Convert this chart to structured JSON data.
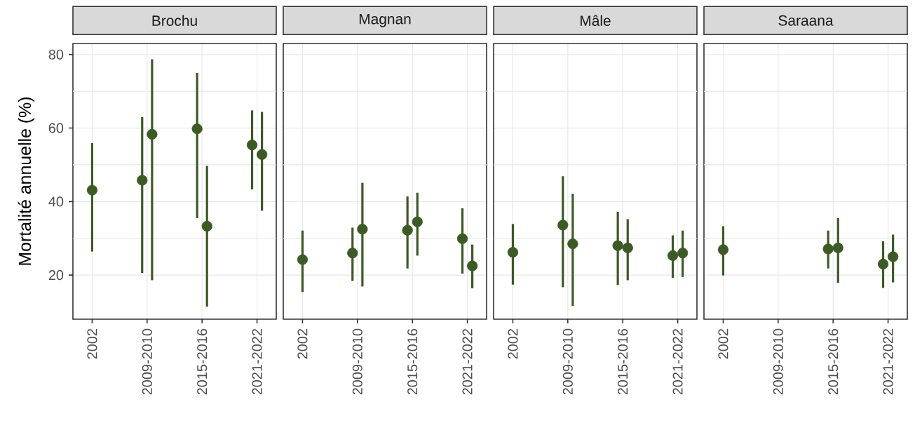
{
  "chart_data": [
    {
      "type": "scatter",
      "title": "Brochu",
      "ylabel": "Mortalité annuelle (%)",
      "categories": [
        "2002",
        "2009-2010",
        "2015-2016",
        "2021-2022"
      ],
      "series": [
        {
          "color": "#3b5a24",
          "values": [
            43.1,
            45.8,
            59.8,
            55.4
          ],
          "errors": [
            [
              26.4,
              55.9
            ],
            [
              20.6,
              63.0
            ],
            [
              35.5,
              75.0
            ],
            [
              43.3,
              64.8
            ]
          ]
        },
        {
          "color": "#3b5a24",
          "values": [
            null,
            58.3,
            33.3,
            52.8
          ],
          "errors": [
            null,
            [
              18.6,
              78.7
            ],
            [
              11.4,
              49.7
            ],
            [
              37.5,
              64.4
            ]
          ]
        }
      ],
      "ylim": [
        8,
        83
      ],
      "yticks": [
        20,
        {
          "value": 30,
          "label": null
        },
        40,
        {
          "value": 50,
          "label": null
        },
        60,
        {
          "value": 70,
          "label": null
        },
        80
      ],
      "grid": true
    },
    {
      "type": "scatter",
      "title": "Magnan",
      "categories": [
        "2002",
        "2009-2010",
        "2015-2016",
        "2021-2022"
      ],
      "series": [
        {
          "color": "#3b5a24",
          "values": [
            24.2,
            26.0,
            32.2,
            29.9
          ],
          "errors": [
            [
              15.4,
              32.1
            ],
            [
              18.4,
              32.9
            ],
            [
              21.8,
              41.4
            ],
            [
              20.4,
              38.2
            ]
          ]
        },
        {
          "color": "#3b5a24",
          "values": [
            null,
            32.5,
            34.5,
            22.5
          ],
          "errors": [
            null,
            [
              16.9,
              45.1
            ],
            [
              25.3,
              42.4
            ],
            [
              16.4,
              28.3
            ]
          ]
        }
      ],
      "ylim": [
        8,
        83
      ],
      "yticks": [
        20,
        {
          "value": 30,
          "label": null
        },
        40,
        {
          "value": 50,
          "label": null
        },
        60,
        {
          "value": 70,
          "label": null
        },
        80
      ],
      "grid": true,
      "tick_labels": "x"
    },
    {
      "type": "scatter",
      "title": "Mâle",
      "categories": [
        "2002",
        "2009-2010",
        "2015-2016",
        "2021-2022"
      ],
      "series": [
        {
          "color": "#3b5a24",
          "values": [
            26.2,
            33.6,
            28.0,
            25.3
          ],
          "errors": [
            [
              17.4,
              33.9
            ],
            [
              16.7,
              46.9
            ],
            [
              17.3,
              37.2
            ],
            [
              19.2,
              30.8
            ]
          ]
        },
        {
          "color": "#3b5a24",
          "values": [
            null,
            28.5,
            27.4,
            26.0
          ],
          "errors": [
            null,
            [
              11.6,
              42.1
            ],
            [
              18.6,
              35.2
            ],
            [
              19.5,
              32.1
            ]
          ]
        }
      ],
      "ylim": [
        8,
        83
      ],
      "yticks": [
        20,
        {
          "value": 30,
          "label": null
        },
        40,
        {
          "value": 50,
          "label": null
        },
        60,
        {
          "value": 70,
          "label": null
        },
        80
      ],
      "grid": true,
      "tick_labels": "x"
    },
    {
      "type": "scatter",
      "title": "Saraana",
      "categories": [
        "2002",
        "2009-2010",
        "2015-2016",
        "2021-2022"
      ],
      "series": [
        {
          "color": "#3b5a24",
          "values": [
            26.9,
            null,
            27.1,
            23.0
          ],
          "errors": [
            [
              19.9,
              33.3
            ],
            null,
            [
              21.8,
              32.1
            ],
            [
              16.5,
              29.2
            ]
          ]
        },
        {
          "color": "#3b5a24",
          "values": [
            null,
            null,
            27.4,
            25.0
          ],
          "errors": [
            null,
            null,
            [
              17.9,
              35.5
            ],
            [
              18.0,
              31.0
            ]
          ]
        }
      ],
      "ylim": [
        8,
        83
      ],
      "yticks": [
        20,
        {
          "value": 30,
          "label": null
        },
        40,
        {
          "value": 50,
          "label": null
        },
        60,
        {
          "value": 70,
          "label": null
        },
        80
      ],
      "grid": true,
      "tick_labels": "x"
    }
  ]
}
